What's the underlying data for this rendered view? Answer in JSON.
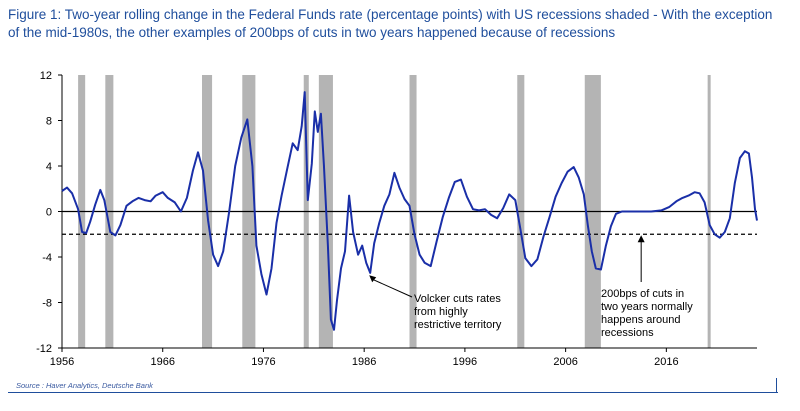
{
  "title_text": "Figure 1: Two-year rolling change in the Federal Funds rate (percentage points) with US recessions shaded - With the exception of the mid-1980s, the other examples of 200bps of cuts in two years happened because of recessions",
  "source": "Source : Haver Analytics, Deutsche Bank",
  "colors": {
    "line": "#1a2fa8",
    "recession": "#b4b4b4",
    "title": "#1f4e9c"
  },
  "chart_data": {
    "type": "line",
    "title": "Figure 1: Two-year rolling change in the Federal Funds rate (percentage points) with US recessions shaded - With the exception of the mid-1980s, the other examples of 200bps of cuts in two years happened because of recessions",
    "xlabel": "",
    "ylabel": "",
    "xlim": [
      1956,
      2025
    ],
    "ylim": [
      -12,
      12
    ],
    "x_ticks": [
      1956,
      1966,
      1976,
      1986,
      1996,
      2006,
      2016
    ],
    "y_ticks": [
      12,
      8,
      4,
      0,
      -4,
      -8,
      -12
    ],
    "x_tick_labels": [
      "1956",
      "1966",
      "1976",
      "1986",
      "1996",
      "2006",
      "2016"
    ],
    "y_tick_labels": [
      "12",
      "8",
      "4",
      "0",
      "-4",
      "-8",
      "-12"
    ],
    "grid": false,
    "reference_lines": [
      {
        "y": -2,
        "style": "dashed"
      },
      {
        "y": 0,
        "style": "solid"
      }
    ],
    "recessions": [
      [
        1957.6,
        1958.3
      ],
      [
        1960.3,
        1961.1
      ],
      [
        1969.9,
        1970.9
      ],
      [
        1973.9,
        1975.2
      ],
      [
        1980.0,
        1980.5
      ],
      [
        1981.5,
        1982.9
      ],
      [
        1990.5,
        1991.2
      ],
      [
        2001.2,
        2001.9
      ],
      [
        2007.9,
        2009.5
      ],
      [
        2020.1,
        2020.3
      ]
    ],
    "series": [
      {
        "values": [
          [
            1956.0,
            1.8
          ],
          [
            1956.5,
            2.1
          ],
          [
            1957.0,
            1.6
          ],
          [
            1957.6,
            0.2
          ],
          [
            1958.0,
            -1.8
          ],
          [
            1958.4,
            -1.9
          ],
          [
            1958.8,
            -0.9
          ],
          [
            1959.3,
            0.6
          ],
          [
            1959.8,
            1.9
          ],
          [
            1960.2,
            1.0
          ],
          [
            1960.8,
            -1.8
          ],
          [
            1961.3,
            -2.1
          ],
          [
            1961.8,
            -1.2
          ],
          [
            1962.4,
            0.5
          ],
          [
            1963.0,
            0.9
          ],
          [
            1963.6,
            1.2
          ],
          [
            1964.2,
            1.0
          ],
          [
            1964.8,
            0.9
          ],
          [
            1965.3,
            1.4
          ],
          [
            1966.0,
            1.7
          ],
          [
            1966.5,
            1.2
          ],
          [
            1967.2,
            0.8
          ],
          [
            1967.8,
            0.0
          ],
          [
            1968.4,
            1.2
          ],
          [
            1969.0,
            3.6
          ],
          [
            1969.5,
            5.2
          ],
          [
            1970.0,
            3.6
          ],
          [
            1970.5,
            -0.8
          ],
          [
            1971.0,
            -3.8
          ],
          [
            1971.5,
            -4.8
          ],
          [
            1972.0,
            -3.5
          ],
          [
            1972.6,
            0.0
          ],
          [
            1973.2,
            4.0
          ],
          [
            1973.8,
            6.5
          ],
          [
            1974.4,
            8.1
          ],
          [
            1974.9,
            4.0
          ],
          [
            1975.3,
            -3.0
          ],
          [
            1975.8,
            -5.5
          ],
          [
            1976.3,
            -7.3
          ],
          [
            1976.8,
            -5.0
          ],
          [
            1977.3,
            -1.0
          ],
          [
            1977.8,
            1.4
          ],
          [
            1978.4,
            3.9
          ],
          [
            1978.9,
            6.0
          ],
          [
            1979.4,
            5.4
          ],
          [
            1979.8,
            7.5
          ],
          [
            1980.1,
            10.5
          ],
          [
            1980.4,
            1.0
          ],
          [
            1980.8,
            4.2
          ],
          [
            1981.1,
            8.8
          ],
          [
            1981.4,
            7.0
          ],
          [
            1981.7,
            8.6
          ],
          [
            1982.0,
            4.1
          ],
          [
            1982.4,
            -3.0
          ],
          [
            1982.7,
            -9.5
          ],
          [
            1983.0,
            -10.4
          ],
          [
            1983.3,
            -7.8
          ],
          [
            1983.7,
            -5.0
          ],
          [
            1984.1,
            -3.5
          ],
          [
            1984.5,
            1.4
          ],
          [
            1984.9,
            -1.8
          ],
          [
            1985.4,
            -3.8
          ],
          [
            1985.8,
            -3.0
          ],
          [
            1986.2,
            -4.5
          ],
          [
            1986.6,
            -5.4
          ],
          [
            1987.0,
            -2.8
          ],
          [
            1987.5,
            -1.0
          ],
          [
            1988.0,
            0.5
          ],
          [
            1988.5,
            1.5
          ],
          [
            1989.0,
            3.4
          ],
          [
            1989.5,
            2.1
          ],
          [
            1990.0,
            1.1
          ],
          [
            1990.5,
            0.5
          ],
          [
            1991.0,
            -2.0
          ],
          [
            1991.5,
            -3.8
          ],
          [
            1992.0,
            -4.5
          ],
          [
            1992.6,
            -4.8
          ],
          [
            1993.2,
            -2.6
          ],
          [
            1993.8,
            -0.5
          ],
          [
            1994.4,
            1.2
          ],
          [
            1995.0,
            2.6
          ],
          [
            1995.6,
            2.8
          ],
          [
            1996.2,
            1.3
          ],
          [
            1996.8,
            0.2
          ],
          [
            1997.4,
            0.1
          ],
          [
            1998.0,
            0.2
          ],
          [
            1998.6,
            -0.3
          ],
          [
            1999.2,
            -0.6
          ],
          [
            1999.8,
            0.3
          ],
          [
            2000.4,
            1.5
          ],
          [
            2001.0,
            1.0
          ],
          [
            2001.5,
            -1.5
          ],
          [
            2002.0,
            -4.1
          ],
          [
            2002.6,
            -4.8
          ],
          [
            2003.2,
            -4.2
          ],
          [
            2003.8,
            -2.2
          ],
          [
            2004.4,
            -0.5
          ],
          [
            2005.0,
            1.3
          ],
          [
            2005.6,
            2.5
          ],
          [
            2006.2,
            3.5
          ],
          [
            2006.8,
            3.9
          ],
          [
            2007.3,
            3.0
          ],
          [
            2007.8,
            1.5
          ],
          [
            2008.2,
            -1.2
          ],
          [
            2008.6,
            -3.5
          ],
          [
            2009.0,
            -5.0
          ],
          [
            2009.5,
            -5.1
          ],
          [
            2010.0,
            -3.0
          ],
          [
            2010.5,
            -1.3
          ],
          [
            2011.0,
            -0.2
          ],
          [
            2011.6,
            0.0
          ],
          [
            2012.5,
            0.0
          ],
          [
            2013.5,
            0.0
          ],
          [
            2014.5,
            0.0
          ],
          [
            2015.5,
            0.1
          ],
          [
            2016.3,
            0.4
          ],
          [
            2017.0,
            0.9
          ],
          [
            2017.6,
            1.2
          ],
          [
            2018.2,
            1.4
          ],
          [
            2018.8,
            1.7
          ],
          [
            2019.3,
            1.6
          ],
          [
            2019.8,
            0.8
          ],
          [
            2020.3,
            -1.2
          ],
          [
            2020.8,
            -2.0
          ],
          [
            2021.3,
            -2.3
          ],
          [
            2021.8,
            -1.8
          ],
          [
            2022.3,
            -0.6
          ],
          [
            2022.8,
            2.5
          ],
          [
            2023.3,
            4.7
          ],
          [
            2023.8,
            5.3
          ],
          [
            2024.2,
            5.1
          ],
          [
            2024.5,
            3.0
          ],
          [
            2024.8,
            0.2
          ],
          [
            2025.0,
            -0.8
          ]
        ]
      }
    ],
    "annotations": [
      {
        "text_lines": [
          "Volcker cuts rates",
          "from highly",
          "restrictive territory"
        ],
        "arrow_to": [
          1986.5,
          -5.6
        ]
      },
      {
        "text_lines": [
          "200bps of cuts in",
          "two years normally",
          "happens around",
          "recessions"
        ],
        "arrow_to": [
          2013.5,
          -2.0
        ]
      }
    ]
  }
}
